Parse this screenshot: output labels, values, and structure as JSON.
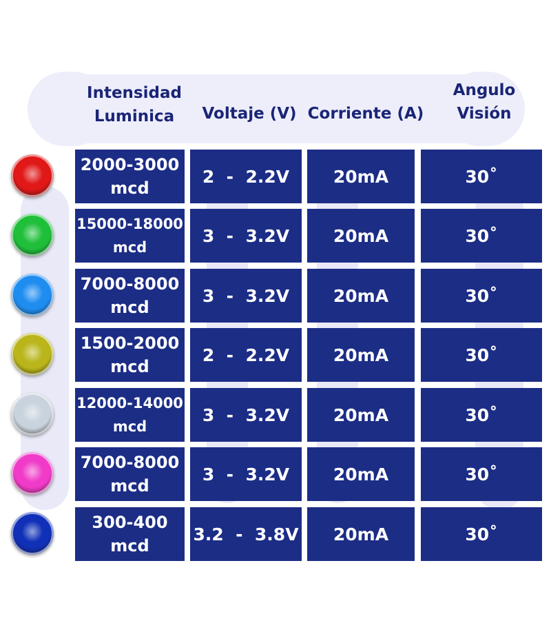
{
  "header": {
    "intensity_line1": "Intensidad",
    "intensity_line2": "Luminica",
    "voltage": "Voltaje (V)",
    "current": "Corriente (A)",
    "angle_line1": "Angulo",
    "angle_line2": "Visión"
  },
  "rows": [
    {
      "led_color": "#e01818",
      "led_name": "red-led-icon",
      "intensity": "2000-3000",
      "unit": "mcd",
      "voltage": "2  -  2.2V",
      "current": "20mA",
      "angle": "30˚"
    },
    {
      "led_color": "#1fbf3a",
      "led_name": "green-led-icon",
      "intensity": "15000-18000",
      "unit": "mcd",
      "voltage": "3  -  3.2V",
      "current": "20mA",
      "angle": "30˚"
    },
    {
      "led_color": "#1f8df0",
      "led_name": "blue-led-icon",
      "intensity": "7000-8000",
      "unit": "mcd",
      "voltage": "3  -  3.2V",
      "current": "20mA",
      "angle": "30˚"
    },
    {
      "led_color": "#b9b51a",
      "led_name": "yellow-led-icon",
      "intensity": "1500-2000",
      "unit": "mcd",
      "voltage": "2  -  2.2V",
      "current": "20mA",
      "angle": "30˚"
    },
    {
      "led_color": "#c9d3dd",
      "led_name": "white-led-icon",
      "intensity": "12000-14000",
      "unit": "mcd",
      "voltage": "3  -  3.2V",
      "current": "20mA",
      "angle": "30˚"
    },
    {
      "led_color": "#f03bc8",
      "led_name": "pink-led-icon",
      "intensity": "7000-8000",
      "unit": "mcd",
      "voltage": "3  -  3.2V",
      "current": "20mA",
      "angle": "30˚"
    },
    {
      "led_color": "#1030b8",
      "led_name": "dark-blue-led-icon",
      "intensity": "300-400",
      "unit": "mcd",
      "voltage": "3.2  -  3.8V",
      "current": "20mA",
      "angle": "30˚"
    }
  ],
  "colors": {
    "cell_background": "#1c2d86",
    "header_text": "#1a2576",
    "header_pill": "#eeeefb"
  }
}
